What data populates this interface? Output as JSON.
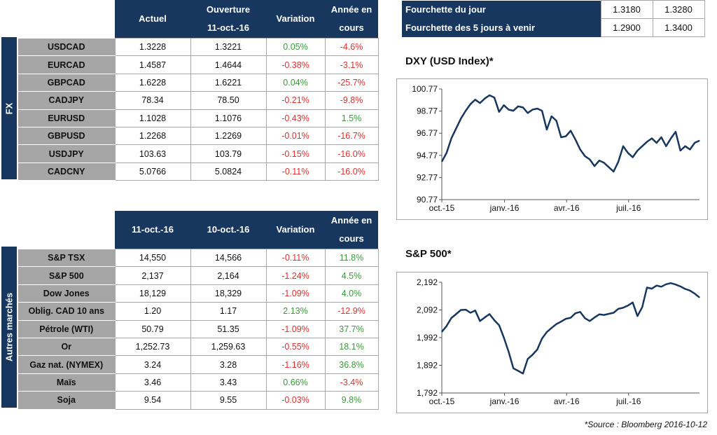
{
  "fx": {
    "side_label": "FX",
    "headers": [
      "Actuel",
      "Ouverture 11-oct.-16",
      "Variation",
      "Année en cours"
    ],
    "rows": [
      {
        "name": "USDCAD",
        "actuel": "1.3228",
        "ouverture": "1.3221",
        "variation": "0.05%",
        "annee": "-4.6%"
      },
      {
        "name": "EURCAD",
        "actuel": "1.4587",
        "ouverture": "1.4644",
        "variation": "-0.38%",
        "annee": "-3.1%"
      },
      {
        "name": "GBPCAD",
        "actuel": "1.6228",
        "ouverture": "1.6221",
        "variation": "0.04%",
        "annee": "-25.7%"
      },
      {
        "name": "CADJPY",
        "actuel": "78.34",
        "ouverture": "78.50",
        "variation": "-0.21%",
        "annee": "-9.8%"
      },
      {
        "name": "EURUSD",
        "actuel": "1.1028",
        "ouverture": "1.1076",
        "variation": "-0.43%",
        "annee": "1.5%"
      },
      {
        "name": "GBPUSD",
        "actuel": "1.2268",
        "ouverture": "1.2269",
        "variation": "-0.01%",
        "annee": "-16.7%"
      },
      {
        "name": "USDJPY",
        "actuel": "103.63",
        "ouverture": "103.79",
        "variation": "-0.15%",
        "annee": "-16.0%"
      },
      {
        "name": "CADCNY",
        "actuel": "5.0766",
        "ouverture": "5.0824",
        "variation": "-0.11%",
        "annee": "-16.0%"
      }
    ]
  },
  "markets": {
    "side_label": "Autres marchés",
    "headers": [
      "11-oct.-16",
      "10-oct.-16",
      "Variation",
      "Année en cours"
    ],
    "rows": [
      {
        "name": "S&P TSX",
        "d1": "14,550",
        "d2": "14,566",
        "variation": "-0.11%",
        "annee": "11.8%"
      },
      {
        "name": "S&P 500",
        "d1": "2,137",
        "d2": "2,164",
        "variation": "-1.24%",
        "annee": "4.5%"
      },
      {
        "name": "Dow Jones",
        "d1": "18,129",
        "d2": "18,329",
        "variation": "-1.09%",
        "annee": "4.0%"
      },
      {
        "name": "Oblig. CAD 10 ans",
        "d1": "1.20",
        "d2": "1.17",
        "variation": "2.13%",
        "annee": "-12.9%"
      },
      {
        "name": "Pétrole (WTI)",
        "d1": "50.79",
        "d2": "51.35",
        "variation": "-1.09%",
        "annee": "37.7%"
      },
      {
        "name": "Or",
        "d1": "1,252.73",
        "d2": "1,259.63",
        "variation": "-0.55%",
        "annee": "18.1%"
      },
      {
        "name": "Gaz nat. (NYMEX)",
        "d1": "3.24",
        "d2": "3.28",
        "variation": "-1.16%",
        "annee": "36.8%"
      },
      {
        "name": "Maïs",
        "d1": "3.46",
        "d2": "3.43",
        "variation": "0.66%",
        "annee": "-3.4%"
      },
      {
        "name": "Soja",
        "d1": "9.54",
        "d2": "9.55",
        "variation": "-0.03%",
        "annee": "9.8%"
      }
    ]
  },
  "ranges": [
    {
      "label": "Fourchette du jour",
      "low": "1.3180",
      "high": "1.3280"
    },
    {
      "label": "Fourchette des 5 jours à venir",
      "low": "1.2900",
      "high": "1.3400"
    }
  ],
  "colors": {
    "navy": "#17375e",
    "gray": "#a6a6a6",
    "green": "#3a9a3a",
    "red": "#e03030",
    "line": "#17375e"
  },
  "source": "*Source : Bloomberg  2016-10-12",
  "chart_data": [
    {
      "type": "line",
      "title": "DXY (USD Index)*",
      "xlabel": "",
      "ylabel": "",
      "ylim": [
        90.77,
        100.77
      ],
      "yticks": [
        "100.77",
        "98.77",
        "96.77",
        "94.77",
        "92.77",
        "90.77"
      ],
      "ytick_values": [
        100.77,
        98.77,
        96.77,
        94.77,
        92.77,
        90.77
      ],
      "xticks": [
        "oct.-15",
        "janv.-16",
        "avr.-16",
        "juil.-16"
      ],
      "xtick_positions": [
        0,
        92,
        183,
        274
      ],
      "x": [
        0,
        7,
        14,
        21,
        28,
        35,
        42,
        49,
        56,
        63,
        70,
        77,
        84,
        91,
        98,
        105,
        112,
        119,
        126,
        133,
        140,
        147,
        154,
        161,
        168,
        175,
        182,
        189,
        196,
        203,
        210,
        217,
        224,
        231,
        238,
        245,
        252,
        259,
        266,
        273,
        280,
        287,
        294,
        301,
        308,
        315,
        322,
        329,
        336,
        343,
        350,
        357,
        364,
        371,
        378
      ],
      "values": [
        94.2,
        95.0,
        96.3,
        97.2,
        98.1,
        98.8,
        99.4,
        99.8,
        99.5,
        99.9,
        100.2,
        100.0,
        98.7,
        99.3,
        98.9,
        98.8,
        99.2,
        99.1,
        98.6,
        98.9,
        99.0,
        98.8,
        97.1,
        98.3,
        97.9,
        96.4,
        96.5,
        97.0,
        96.2,
        95.3,
        94.7,
        94.4,
        93.8,
        94.3,
        94.1,
        93.7,
        93.3,
        94.2,
        95.6,
        95.0,
        94.6,
        95.2,
        95.6,
        96.0,
        96.3,
        95.9,
        96.4,
        95.6,
        96.3,
        96.9,
        95.2,
        95.6,
        95.3,
        95.9,
        96.1
      ]
    },
    {
      "type": "line",
      "title": "S&P 500*",
      "xlabel": "",
      "ylabel": "",
      "ylim": [
        1792,
        2192
      ],
      "yticks": [
        "2,192",
        "2,092",
        "1,992",
        "1,892",
        "1,792"
      ],
      "ytick_values": [
        2192,
        2092,
        1992,
        1892,
        1792
      ],
      "xticks": [
        "oct.-15",
        "janv.-16",
        "avr.-16",
        "juil.-16"
      ],
      "xtick_positions": [
        0,
        92,
        183,
        274
      ],
      "x": [
        0,
        7,
        14,
        21,
        28,
        35,
        42,
        49,
        56,
        63,
        70,
        77,
        84,
        91,
        98,
        105,
        112,
        119,
        126,
        133,
        140,
        147,
        154,
        161,
        168,
        175,
        182,
        189,
        196,
        203,
        210,
        217,
        224,
        231,
        238,
        245,
        252,
        259,
        266,
        273,
        280,
        287,
        294,
        301,
        308,
        315,
        322,
        329,
        336,
        343,
        350,
        357,
        364,
        371,
        378
      ],
      "values": [
        2013,
        2034,
        2063,
        2077,
        2092,
        2093,
        2082,
        2090,
        2052,
        2065,
        2077,
        2055,
        2037,
        1992,
        1941,
        1881,
        1872,
        1862,
        1915,
        1930,
        1949,
        1989,
        2012,
        2027,
        2041,
        2050,
        2060,
        2064,
        2080,
        2085,
        2062,
        2052,
        2065,
        2076,
        2074,
        2078,
        2082,
        2096,
        2100,
        2108,
        2119,
        2070,
        2102,
        2173,
        2169,
        2180,
        2176,
        2185,
        2189,
        2184,
        2177,
        2168,
        2162,
        2151,
        2137
      ]
    }
  ]
}
